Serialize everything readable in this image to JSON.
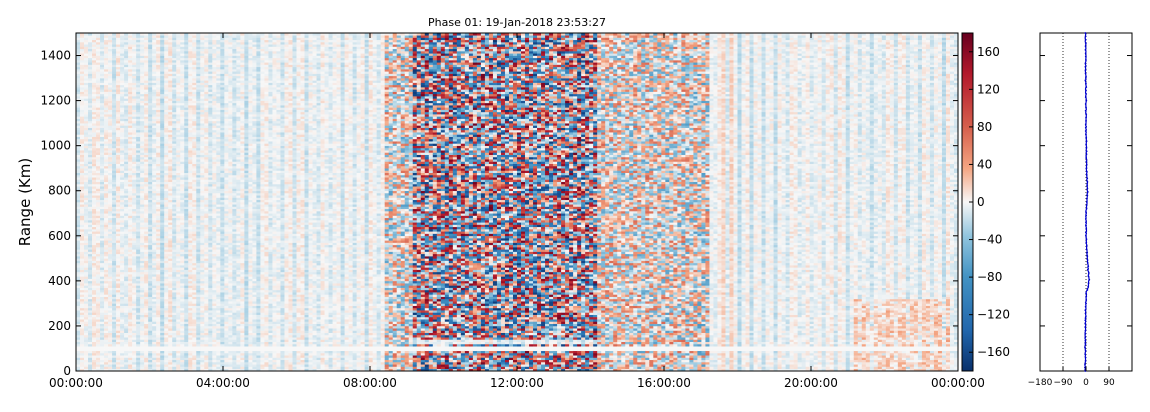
{
  "chart_data": [
    {
      "type": "heatmap",
      "title": "Phase 01: 19-Jan-2018 23:53:27",
      "ylabel": "Range (Km)",
      "xlabel": "",
      "x_ticks": [
        "00:00:00",
        "04:00:00",
        "08:00:00",
        "12:00:00",
        "16:00:00",
        "20:00:00",
        "00:00:00"
      ],
      "x_range_hours": [
        0,
        24
      ],
      "y_ticks": [
        0,
        200,
        400,
        600,
        800,
        1000,
        1200,
        1400
      ],
      "ylim": [
        0,
        1500
      ],
      "colorbar": {
        "ticks": [
          160,
          120,
          80,
          40,
          0,
          -40,
          -80,
          -120,
          -160
        ],
        "range": [
          -180,
          180
        ],
        "colormap": "RdBu_r",
        "colors": {
          "low": "#08306b",
          "mid": "#f7f7f7",
          "high": "#67001f"
        }
      },
      "noisy_band_hours": [
        8.4,
        17.2
      ],
      "gap_range_km": [
        90,
        110
      ],
      "grid": false
    },
    {
      "type": "line",
      "x_ticks": [
        "−180",
        "−90",
        "0",
        "90"
      ],
      "xlim": [
        -180,
        180
      ],
      "ylim": [
        0,
        1500
      ],
      "color": "#0000cc",
      "profile": {
        "range_km": [
          0,
          100,
          200,
          300,
          350,
          370,
          400,
          430,
          500,
          560,
          600,
          700,
          750,
          800,
          850,
          900,
          1000,
          1100,
          1200,
          1300,
          1400,
          1500
        ],
        "phase_deg": [
          -3,
          -3,
          -2,
          -1,
          2,
          8,
          12,
          10,
          5,
          2,
          1,
          0,
          3,
          6,
          4,
          2,
          1,
          0,
          0,
          -1,
          -1,
          -2
        ]
      },
      "dotted_verticals": [
        -90,
        0,
        90
      ],
      "grid": false
    }
  ]
}
